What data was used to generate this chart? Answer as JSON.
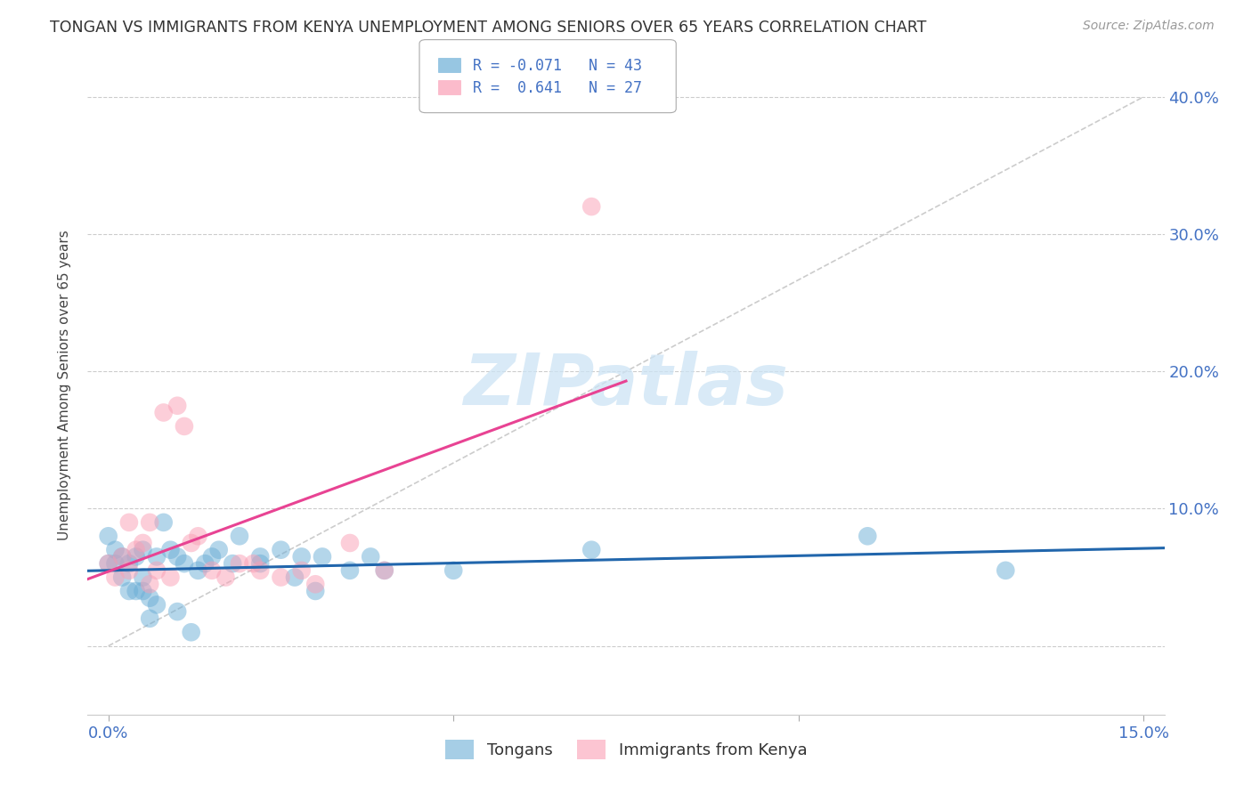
{
  "title": "TONGAN VS IMMIGRANTS FROM KENYA UNEMPLOYMENT AMONG SENIORS OVER 65 YEARS CORRELATION CHART",
  "source": "Source: ZipAtlas.com",
  "ylabel": "Unemployment Among Seniors over 65 years",
  "xlim": [
    -0.003,
    0.153
  ],
  "ylim": [
    -0.05,
    0.43
  ],
  "color_blue": "#6baed6",
  "color_pink": "#fa9fb5",
  "color_trendline_blue": "#2166ac",
  "color_trendline_pink": "#e84393",
  "color_diag": "#cccccc",
  "legend_label1": "Tongans",
  "legend_label2": "Immigrants from Kenya",
  "blue_x": [
    0.0,
    0.0,
    0.001,
    0.001,
    0.002,
    0.002,
    0.003,
    0.003,
    0.004,
    0.004,
    0.005,
    0.005,
    0.005,
    0.006,
    0.006,
    0.007,
    0.007,
    0.008,
    0.009,
    0.01,
    0.01,
    0.011,
    0.012,
    0.013,
    0.014,
    0.015,
    0.016,
    0.018,
    0.019,
    0.022,
    0.022,
    0.025,
    0.027,
    0.028,
    0.03,
    0.031,
    0.035,
    0.038,
    0.04,
    0.05,
    0.07,
    0.11,
    0.13
  ],
  "blue_y": [
    0.06,
    0.08,
    0.06,
    0.07,
    0.05,
    0.065,
    0.04,
    0.06,
    0.04,
    0.065,
    0.04,
    0.05,
    0.07,
    0.02,
    0.035,
    0.03,
    0.065,
    0.09,
    0.07,
    0.025,
    0.065,
    0.06,
    0.01,
    0.055,
    0.06,
    0.065,
    0.07,
    0.06,
    0.08,
    0.065,
    0.06,
    0.07,
    0.05,
    0.065,
    0.04,
    0.065,
    0.055,
    0.065,
    0.055,
    0.055,
    0.07,
    0.08,
    0.055
  ],
  "pink_x": [
    0.0,
    0.001,
    0.002,
    0.003,
    0.003,
    0.004,
    0.005,
    0.006,
    0.006,
    0.007,
    0.008,
    0.009,
    0.01,
    0.011,
    0.012,
    0.013,
    0.015,
    0.017,
    0.019,
    0.021,
    0.022,
    0.025,
    0.028,
    0.03,
    0.035,
    0.04,
    0.07
  ],
  "pink_y": [
    0.06,
    0.05,
    0.065,
    0.055,
    0.09,
    0.07,
    0.075,
    0.045,
    0.09,
    0.055,
    0.17,
    0.05,
    0.175,
    0.16,
    0.075,
    0.08,
    0.055,
    0.05,
    0.06,
    0.06,
    0.055,
    0.05,
    0.055,
    0.045,
    0.075,
    0.055,
    0.32
  ],
  "watermark_text": "ZIPatlas",
  "ytick_positions": [
    0.0,
    0.1,
    0.2,
    0.3,
    0.4
  ],
  "ytick_labels_right": [
    "",
    "10.0%",
    "20.0%",
    "30.0%",
    "40.0%"
  ],
  "xtick_positions": [
    0.0,
    0.05,
    0.1,
    0.15
  ],
  "xtick_labels": [
    "0.0%",
    "",
    "",
    "15.0%"
  ]
}
